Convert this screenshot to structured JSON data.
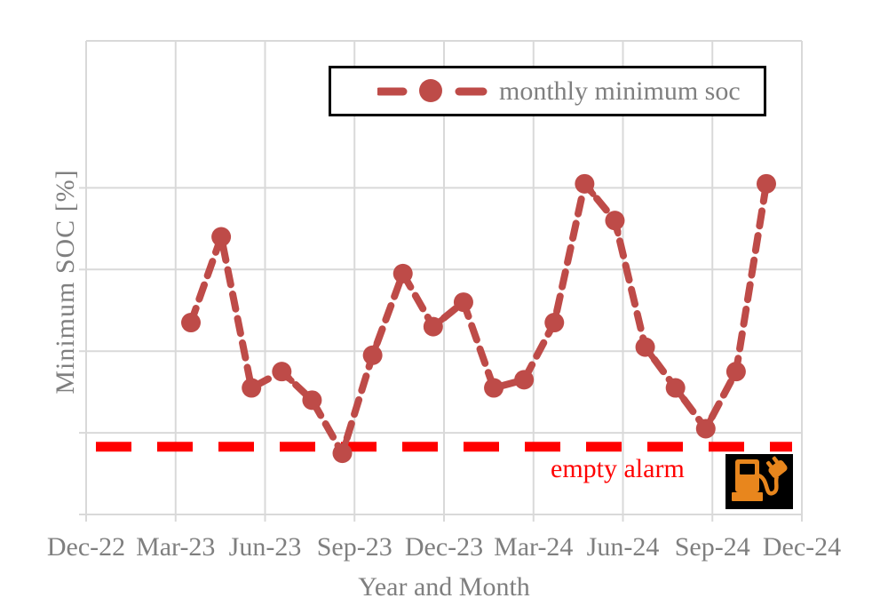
{
  "axes": {
    "y_label": "Minimum SOC [%]",
    "x_label": "Year and Month"
  },
  "legend": {
    "label": "monthly minimum soc"
  },
  "annotations": {
    "empty_alarm_label": "empty alarm"
  },
  "icon": {
    "name": "ev-charging-station",
    "background": "#000000",
    "foreground": "#E8861D"
  },
  "colors": {
    "series": "#BE4B48",
    "alarm": "#FF0000",
    "gridline": "#D9D9D9",
    "text": "#7F7F7F",
    "legend_border": "#000000"
  },
  "chart_data": {
    "type": "line",
    "title": "",
    "xlabel": "Year and Month",
    "ylabel": "Minimum SOC [%]",
    "categories": [
      "Mar-23",
      "Apr-23",
      "May-23",
      "Jun-23",
      "Jul-23",
      "Aug-23",
      "Sep-23",
      "Oct-23",
      "Nov-23",
      "Dec-23",
      "Jan-24",
      "Feb-24",
      "Mar-24",
      "Apr-24",
      "May-24",
      "Jun-24",
      "Jul-24",
      "Aug-24",
      "Sep-24",
      "Oct-24"
    ],
    "series": [
      {
        "name": "monthly minimum soc",
        "values": [
          23.5,
          34,
          15.5,
          17.5,
          14,
          7.5,
          19.5,
          29.5,
          23,
          26,
          15.5,
          16.5,
          23.5,
          40.5,
          36,
          20.5,
          15.5,
          10.5,
          17.5,
          40.5
        ]
      }
    ],
    "x_tick_labels": [
      "Dec-22",
      "Mar-23",
      "Jun-23",
      "Sep-23",
      "Dec-23",
      "Mar-24",
      "Jun-24",
      "Sep-24",
      "Dec-24"
    ],
    "ylim": [
      0,
      58
    ],
    "y_gridline_interval": 10,
    "y_tick_labels_visible": false,
    "grid": true,
    "line_style": "dashed",
    "marker": "circle",
    "legend_position": "top-right",
    "alarm_line": {
      "label": "empty alarm",
      "value": 8.3,
      "style": "dashed",
      "color": "#FF0000"
    }
  }
}
